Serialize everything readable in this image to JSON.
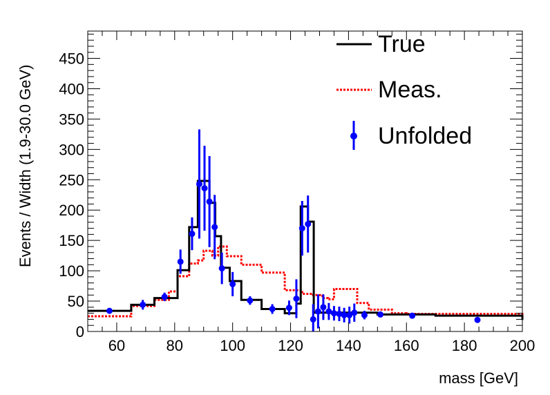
{
  "chart_data": {
    "type": "line",
    "title": "",
    "xlabel": "mass [GeV]",
    "ylabel": "Events / Width (1.9-30.0 GeV)",
    "xlim": [
      50,
      200
    ],
    "ylim": [
      0,
      495
    ],
    "xticks": [
      60,
      80,
      100,
      120,
      140,
      160,
      180,
      200
    ],
    "yticks": [
      0,
      50,
      100,
      150,
      200,
      250,
      300,
      350,
      400,
      450
    ],
    "grid": false,
    "legend_position": "top-right",
    "colors": {
      "true": "#000000",
      "meas": "#ff0000",
      "unfolded": "#0000ff",
      "frame": "#000000"
    },
    "series": [
      {
        "name": "True",
        "style": "step-solid",
        "edges": [
          50,
          65,
          73,
          81,
          85,
          88,
          92,
          94,
          96,
          99,
          103,
          110,
          118,
          122,
          123.5,
          126,
          128,
          150,
          170,
          200
        ],
        "values": [
          34,
          44,
          55,
          101,
          172,
          248,
          212,
          157,
          105,
          83,
          52,
          37,
          30,
          46,
          206,
          181,
          31,
          28,
          26,
          19
        ]
      },
      {
        "name": "Meas.",
        "style": "step-dotted",
        "edges": [
          50,
          65,
          73,
          78,
          81,
          85,
          88,
          90,
          93,
          95,
          98,
          103,
          110,
          118,
          124,
          127,
          131,
          133,
          135,
          143,
          147,
          155,
          160,
          200
        ],
        "values": [
          25,
          42,
          52,
          66,
          91,
          112,
          117,
          133,
          125,
          140,
          124,
          110,
          97,
          68,
          62,
          60,
          55,
          53,
          70,
          47,
          36,
          30,
          29,
          25
        ]
      },
      {
        "name": "Unfolded",
        "style": "points-errorbars",
        "points": [
          {
            "x": 57.5,
            "y": 34,
            "err": 4
          },
          {
            "x": 69,
            "y": 44,
            "err": 8
          },
          {
            "x": 76.5,
            "y": 57,
            "err": 7
          },
          {
            "x": 82,
            "y": 115,
            "err": 20
          },
          {
            "x": 86,
            "y": 161,
            "err": 27
          },
          {
            "x": 88.5,
            "y": 243,
            "err": 90
          },
          {
            "x": 90.3,
            "y": 236,
            "err": 70
          },
          {
            "x": 92,
            "y": 214,
            "err": 75
          },
          {
            "x": 93.8,
            "y": 172,
            "err": 53
          },
          {
            "x": 96.3,
            "y": 104,
            "err": 26
          },
          {
            "x": 100,
            "y": 78,
            "err": 20
          },
          {
            "x": 106,
            "y": 51,
            "err": 7
          },
          {
            "x": 113.7,
            "y": 37,
            "err": 8
          },
          {
            "x": 119.5,
            "y": 39,
            "err": 12
          },
          {
            "x": 122,
            "y": 54,
            "err": 32
          },
          {
            "x": 124,
            "y": 170,
            "err": 45
          },
          {
            "x": 126,
            "y": 177,
            "err": 47
          },
          {
            "x": 127.8,
            "y": 20,
            "err": 25
          },
          {
            "x": 129.5,
            "y": 33,
            "err": 28
          },
          {
            "x": 131.3,
            "y": 40,
            "err": 21
          },
          {
            "x": 133.2,
            "y": 33,
            "err": 14
          },
          {
            "x": 135,
            "y": 30,
            "err": 12
          },
          {
            "x": 136.8,
            "y": 29,
            "err": 12
          },
          {
            "x": 138.5,
            "y": 27,
            "err": 12
          },
          {
            "x": 140.3,
            "y": 27,
            "err": 14
          },
          {
            "x": 142,
            "y": 31,
            "err": 15
          },
          {
            "x": 145.5,
            "y": 27,
            "err": 7
          },
          {
            "x": 151,
            "y": 28,
            "err": 4
          },
          {
            "x": 162,
            "y": 26,
            "err": 4
          },
          {
            "x": 184.5,
            "y": 19,
            "err": 3
          }
        ]
      }
    ]
  }
}
